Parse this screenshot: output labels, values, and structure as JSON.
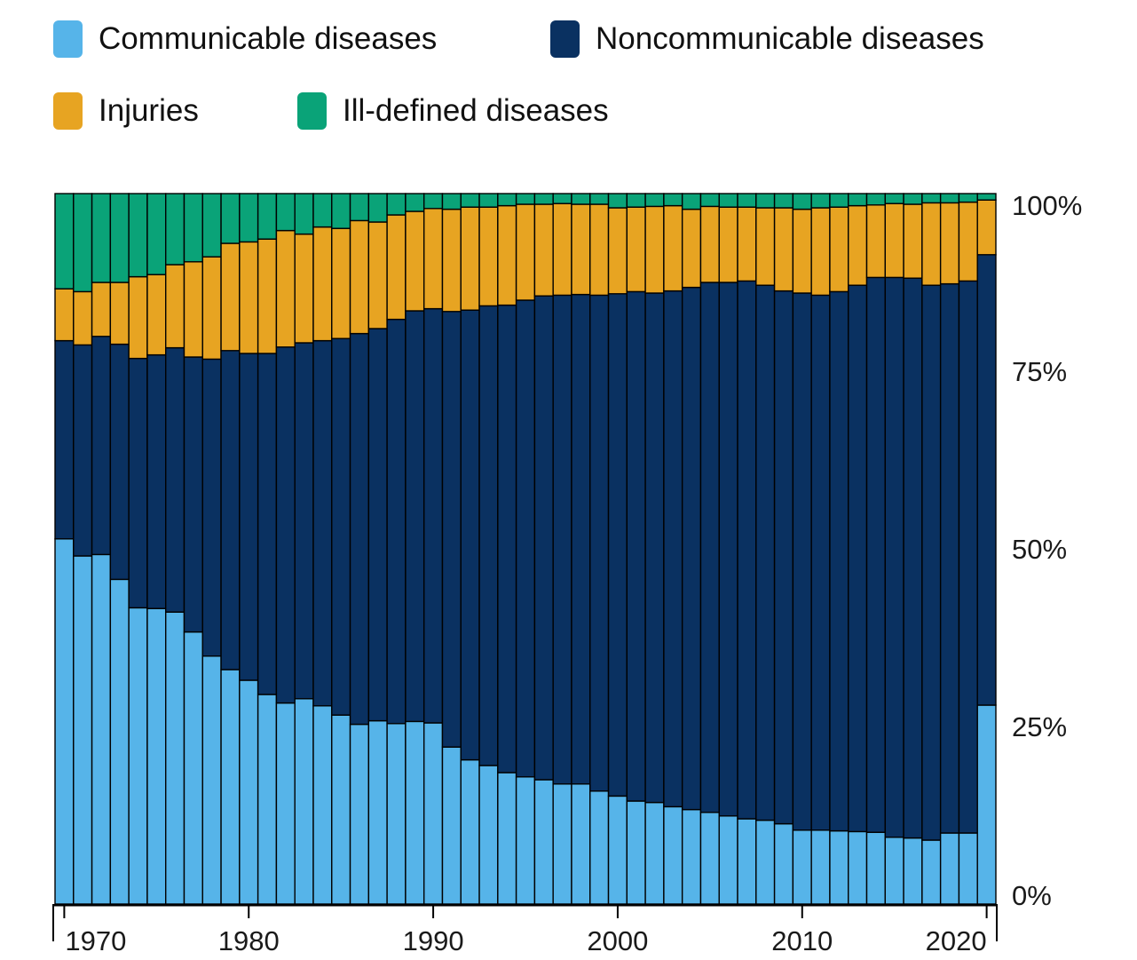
{
  "legend": {
    "items": [
      {
        "label": "Communicable diseases",
        "color": "#56B4E9"
      },
      {
        "label": "Noncommunicable diseases",
        "color": "#0A3161"
      },
      {
        "label": "Injuries",
        "color": "#E7A422"
      },
      {
        "label": "Ill-defined diseases",
        "color": "#0AA378"
      }
    ]
  },
  "chart_data": {
    "type": "bar",
    "stacked": true,
    "stack_unit": "percent",
    "title": "",
    "xlabel": "",
    "ylabel": "",
    "ylim": [
      0,
      100
    ],
    "grid": false,
    "legend_position": "top-left",
    "outline_color": "#000000",
    "axis_color": "#000000",
    "tick_label_color": "#1a1a1a",
    "y_ticks": [
      {
        "value": 0,
        "label": "0%"
      },
      {
        "value": 25,
        "label": "25%"
      },
      {
        "value": 50,
        "label": "50%"
      },
      {
        "value": 75,
        "label": "75%"
      },
      {
        "value": 100,
        "label": "100%"
      }
    ],
    "x_ticks": [
      1970,
      1980,
      1990,
      2000,
      2010,
      2020
    ],
    "x": [
      1970,
      1971,
      1972,
      1973,
      1974,
      1975,
      1976,
      1977,
      1978,
      1979,
      1980,
      1981,
      1982,
      1983,
      1984,
      1985,
      1986,
      1987,
      1988,
      1989,
      1990,
      1991,
      1992,
      1993,
      1994,
      1995,
      1996,
      1997,
      1998,
      1999,
      2000,
      2001,
      2002,
      2003,
      2004,
      2005,
      2006,
      2007,
      2008,
      2009,
      2010,
      2011,
      2012,
      2013,
      2014,
      2015,
      2016,
      2017,
      2018,
      2019,
      2020
    ],
    "series": [
      {
        "name": "Communicable diseases",
        "key": "communicable",
        "color": "#56B4E9",
        "values": [
          51.4,
          49.0,
          49.2,
          45.7,
          41.7,
          41.6,
          41.1,
          38.3,
          34.9,
          33.0,
          31.5,
          29.5,
          28.3,
          28.9,
          27.9,
          26.6,
          25.3,
          25.8,
          25.4,
          25.7,
          25.5,
          22.1,
          20.3,
          19.5,
          18.5,
          17.9,
          17.5,
          16.9,
          16.9,
          15.9,
          15.2,
          14.5,
          14.3,
          13.7,
          13.3,
          12.9,
          12.4,
          12.0,
          11.8,
          11.3,
          10.4,
          10.4,
          10.3,
          10.2,
          10.1,
          9.4,
          9.3,
          9.0,
          10.0,
          10.0,
          28.0
        ]
      },
      {
        "name": "Noncommunicable diseases",
        "key": "noncommunicable",
        "color": "#0A3161",
        "values": [
          27.9,
          29.7,
          30.7,
          33.1,
          35.1,
          35.7,
          37.2,
          38.7,
          41.8,
          44.9,
          46.0,
          48.0,
          50.1,
          50.1,
          51.4,
          53.0,
          55.0,
          55.2,
          56.9,
          57.8,
          58.3,
          61.3,
          63.3,
          64.7,
          65.8,
          67.1,
          68.1,
          68.8,
          68.9,
          69.8,
          70.7,
          71.7,
          71.7,
          72.6,
          73.5,
          74.6,
          75.1,
          75.7,
          75.3,
          75.0,
          75.6,
          75.3,
          75.9,
          76.9,
          78.1,
          78.8,
          78.8,
          78.1,
          77.3,
          77.7,
          63.4
        ]
      },
      {
        "name": "Injuries",
        "key": "injuries",
        "color": "#E7A422",
        "values": [
          7.3,
          7.5,
          7.6,
          8.7,
          11.5,
          11.3,
          11.7,
          13.4,
          14.4,
          15.1,
          15.7,
          16.1,
          16.4,
          15.3,
          16.0,
          15.5,
          15.9,
          15.0,
          14.7,
          14.0,
          14.1,
          14.4,
          14.5,
          13.9,
          14.0,
          13.5,
          12.9,
          12.9,
          12.7,
          12.8,
          12.1,
          11.9,
          12.2,
          12.0,
          11.0,
          10.7,
          10.6,
          10.4,
          10.9,
          11.7,
          11.8,
          12.3,
          11.9,
          11.2,
          10.2,
          10.4,
          10.4,
          11.6,
          11.4,
          11.1,
          7.7
        ]
      },
      {
        "name": "Ill-defined diseases",
        "key": "ill_defined",
        "color": "#0AA378",
        "values": [
          13.4,
          13.8,
          12.5,
          12.5,
          11.7,
          11.4,
          10.0,
          9.6,
          8.9,
          7.0,
          6.8,
          6.4,
          5.2,
          5.7,
          4.7,
          4.9,
          3.8,
          4.0,
          3.0,
          2.5,
          2.1,
          2.2,
          1.9,
          1.9,
          1.7,
          1.5,
          1.5,
          1.4,
          1.5,
          1.5,
          2.0,
          1.9,
          1.8,
          1.7,
          2.2,
          1.8,
          1.9,
          1.9,
          2.0,
          2.0,
          2.2,
          2.0,
          1.9,
          1.7,
          1.6,
          1.4,
          1.5,
          1.3,
          1.3,
          1.2,
          0.9
        ]
      }
    ]
  }
}
